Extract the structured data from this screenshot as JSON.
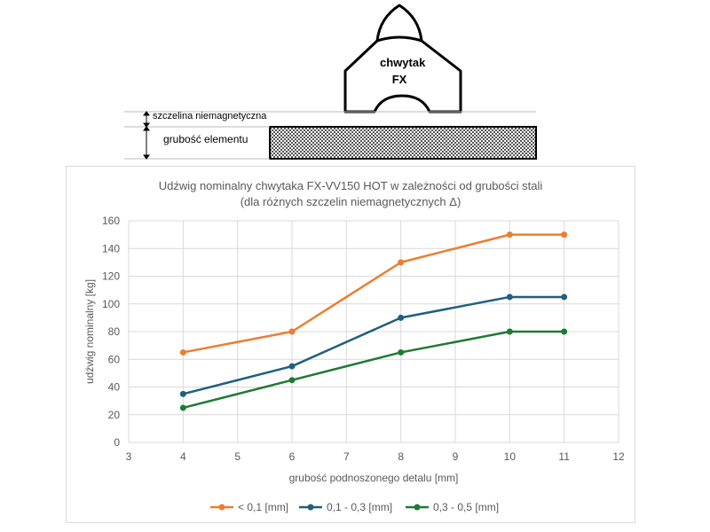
{
  "diagram": {
    "gripper_line1": "chwytak",
    "gripper_line2": "FX",
    "gap_label": "szczelina niemagnetyczna",
    "thickness_label": "grubość elementu"
  },
  "chart_data": {
    "type": "line",
    "title": "Udźwig nominalny chwytaka FX-VV150 HOT w zależności od grubości stali",
    "subtitle": "(dla różnych szczelin niemagnetycznych Δ)",
    "xlabel": "grubość podnoszonego detalu [mm]",
    "ylabel": "udźwig nominalny [kg]",
    "xlim": [
      3,
      12
    ],
    "ylim": [
      0,
      160
    ],
    "xticks": [
      3,
      4,
      5,
      6,
      7,
      8,
      9,
      10,
      11,
      12
    ],
    "yticks": [
      0,
      20,
      40,
      60,
      80,
      100,
      120,
      140,
      160
    ],
    "grid": true,
    "legend_position": "bottom",
    "x": [
      4,
      6,
      8,
      10,
      11
    ],
    "series": [
      {
        "name": "< 0,1 [mm]",
        "values": [
          65,
          80,
          130,
          150,
          150
        ],
        "color": "#ed7d31"
      },
      {
        "name": "0,1 - 0,3 [mm]",
        "values": [
          35,
          55,
          90,
          105,
          105
        ],
        "color": "#1f5f7f"
      },
      {
        "name": "0,3 - 0,5 [mm]",
        "values": [
          25,
          45,
          65,
          80,
          80
        ],
        "color": "#1e7a34"
      }
    ]
  }
}
